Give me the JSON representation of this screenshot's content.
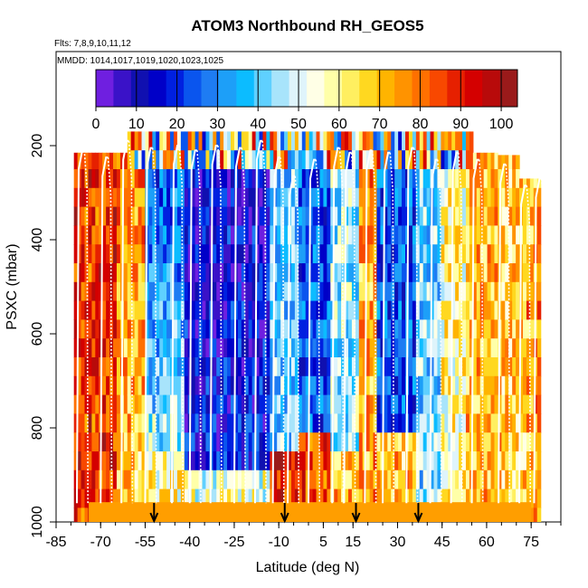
{
  "chart_data": {
    "type": "heatmap",
    "title": "ATOM3 Northbound RH_GEOS5",
    "flights_note": "Flts: 7,8,9,10,11,12",
    "dates_note": "MMDD: 1014,1017,1019,1020,1023,1025",
    "xlabel": "Latitude (deg N)",
    "ylabel": "PSXC (mbar)",
    "xlim": [
      -85,
      85
    ],
    "ylim": [
      1000,
      0
    ],
    "x_ticks": [
      "-85",
      "-70",
      "-55",
      "-40",
      "-25",
      "-10",
      "5",
      "15",
      "30",
      "45",
      "60",
      "75"
    ],
    "x_tick_values": [
      -85,
      -70,
      -55,
      -40,
      -25,
      -10,
      5,
      15,
      30,
      45,
      60,
      75
    ],
    "y_ticks": [
      "200",
      "400",
      "600",
      "800",
      "1000"
    ],
    "y_tick_values": [
      200,
      400,
      600,
      800,
      1000
    ],
    "colorbar": {
      "min": 0,
      "max": 104,
      "ticks": [
        "0",
        "10",
        "20",
        "30",
        "40",
        "50",
        "60",
        "70",
        "80",
        "90",
        "100"
      ],
      "tick_values": [
        0,
        10,
        20,
        30,
        40,
        50,
        60,
        70,
        80,
        90,
        100
      ],
      "colors": [
        "#6f1fe0",
        "#3a12c8",
        "#1010b0",
        "#0000c8",
        "#0020e0",
        "#0a55ee",
        "#1e7cf3",
        "#1d9ff8",
        "#0cbcff",
        "#5fd0ff",
        "#a8e4fb",
        "#dff4fb",
        "#ffffe6",
        "#ffffa8",
        "#ffef60",
        "#ffd820",
        "#ffb400",
        "#ff9300",
        "#ff7000",
        "#f84800",
        "#e62000",
        "#d40000",
        "#b80a0a",
        "#9a1a1a"
      ]
    },
    "grid": false,
    "arrow_markers_lat": [
      -52,
      -8,
      16,
      37
    ],
    "profile_lines": [
      {
        "lat": -78,
        "top": 210
      },
      {
        "lat": -70,
        "top": 225
      },
      {
        "lat": -63,
        "top": 190
      },
      {
        "lat": -55,
        "top": 205
      },
      {
        "lat": -46,
        "top": 200
      },
      {
        "lat": -40,
        "top": 210
      },
      {
        "lat": -33,
        "top": 200
      },
      {
        "lat": -25,
        "top": 205
      },
      {
        "lat": -18,
        "top": 190
      },
      {
        "lat": -12,
        "top": 225
      },
      {
        "lat": -7,
        "top": 265
      },
      {
        "lat": 0,
        "top": 230
      },
      {
        "lat": 8,
        "top": 205
      },
      {
        "lat": 12,
        "top": 215
      },
      {
        "lat": 19,
        "top": 210
      },
      {
        "lat": 25,
        "top": 215
      },
      {
        "lat": 33,
        "top": 205
      },
      {
        "lat": 41,
        "top": 230
      },
      {
        "lat": 48,
        "top": 215
      },
      {
        "lat": 55,
        "top": 230
      },
      {
        "lat": 64,
        "top": 240
      },
      {
        "lat": 71,
        "top": 285
      },
      {
        "lat": 76,
        "top": 270
      }
    ]
  }
}
